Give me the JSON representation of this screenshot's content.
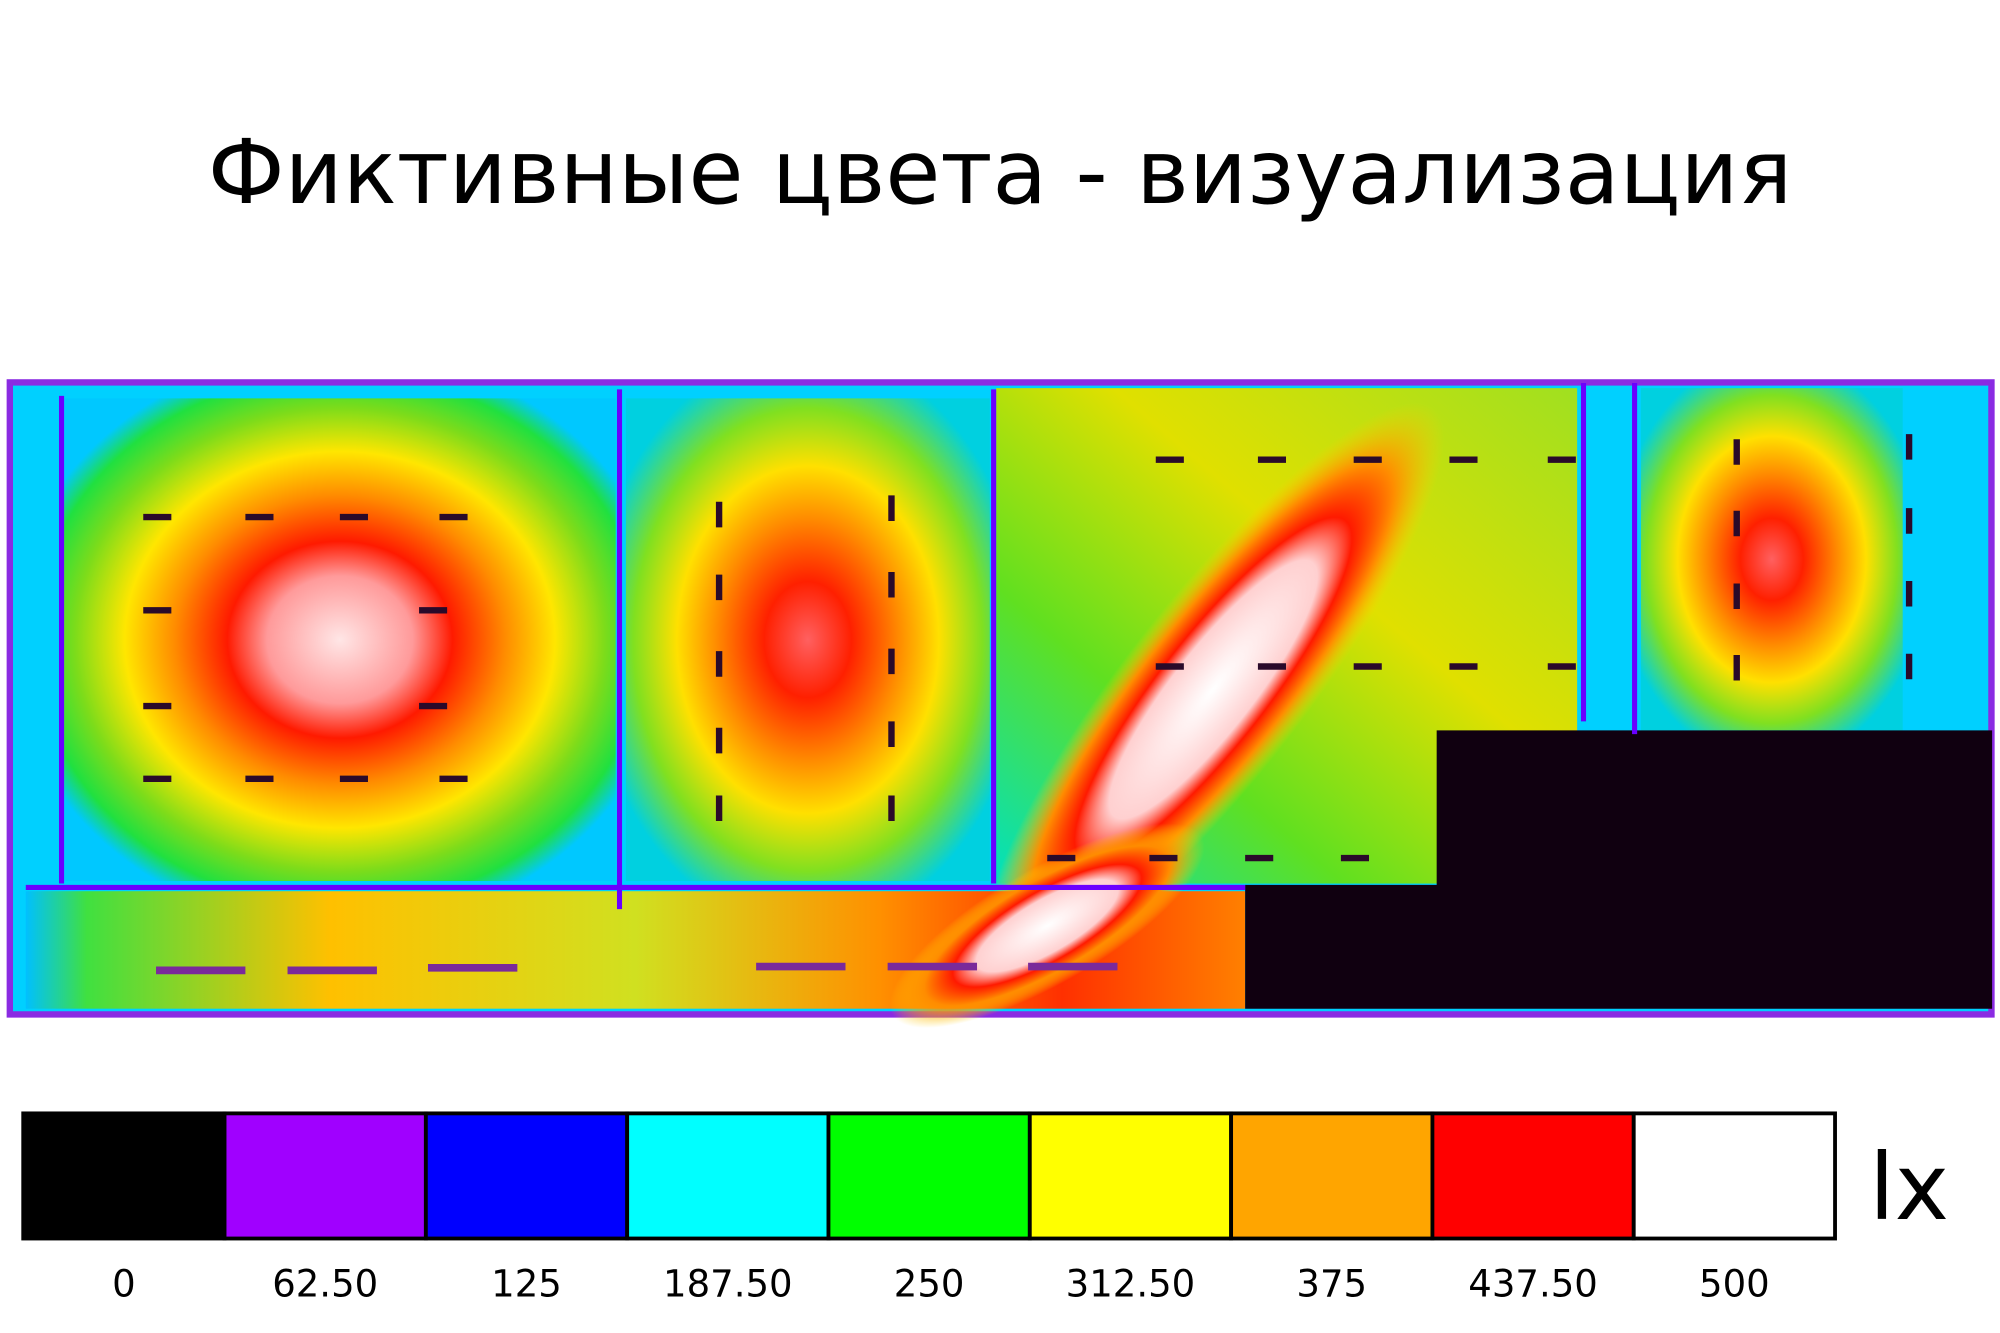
{
  "title": "Фиктивные цвета - визуализация",
  "legend": {
    "ticks": [
      "0",
      "62.50",
      "125",
      "187.50",
      "250",
      "312.50",
      "375",
      "437.50",
      "500"
    ],
    "colors": [
      "#000000",
      "#a000ff",
      "#0000ff",
      "#00ffff",
      "#00ff00",
      "#ffff00",
      "#ffa500",
      "#ff0000",
      "#ffffff"
    ],
    "unit": "lx"
  }
}
